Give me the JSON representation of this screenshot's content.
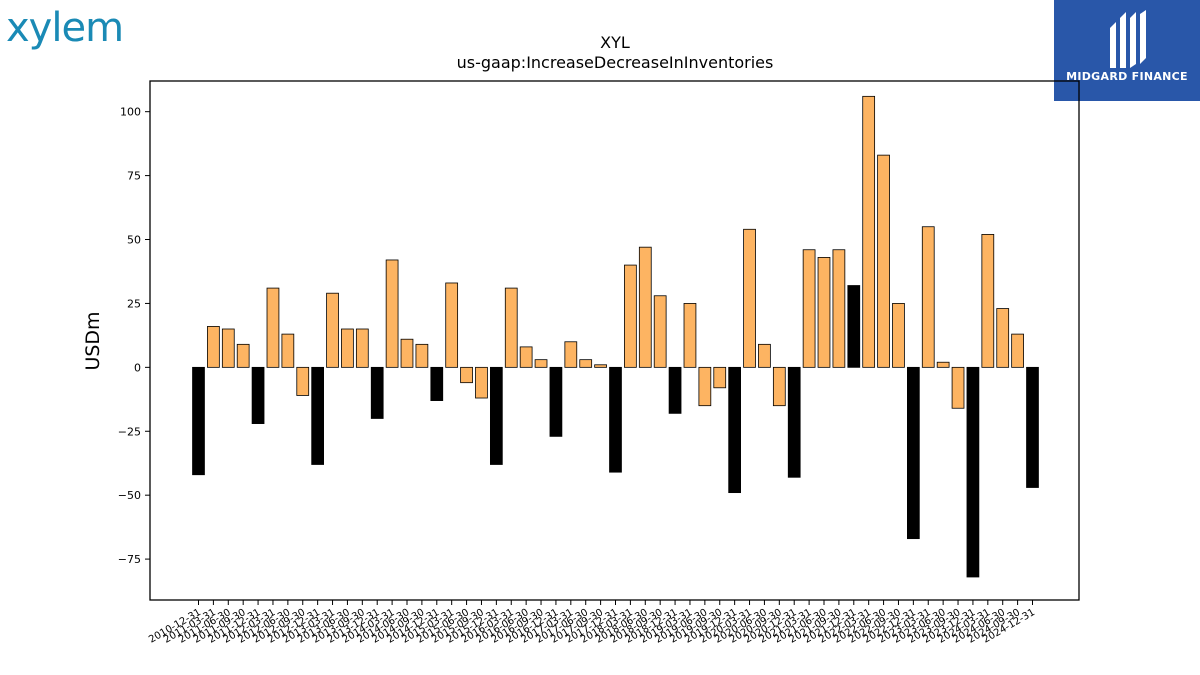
{
  "brand": {
    "company_logo_text": "xylem",
    "publisher_logo_text": "MIDGARD FINANCE",
    "company_logo_color": "#1a8ab5",
    "publisher_logo_bg": "#2957a9"
  },
  "chart_data": {
    "type": "bar",
    "title": "XYL",
    "subtitle": "us-gaap:IncreaseDecreaseInInventories",
    "ylabel": "USDm",
    "xlabel": "",
    "ylim": [
      -91,
      112
    ],
    "yticks": [
      100,
      75,
      50,
      25,
      0,
      -25,
      -50,
      -75
    ],
    "ytick_labels": [
      "100",
      "75",
      "50",
      "25",
      "0",
      "−25",
      "−50",
      "−75"
    ],
    "grid": false,
    "legend": "none",
    "colors": {
      "positive_quarter": "#fdb462",
      "fiscal_year_end": "#000000",
      "edge": "#000000"
    },
    "categories": [
      "2010-12-31",
      "2011-03-31",
      "2011-06-30",
      "2011-09-30",
      "2011-12-31",
      "2012-03-31",
      "2012-06-30",
      "2012-09-30",
      "2012-12-31",
      "2013-03-31",
      "2013-06-30",
      "2013-09-30",
      "2013-12-31",
      "2014-03-31",
      "2014-06-30",
      "2014-09-30",
      "2014-12-31",
      "2015-03-31",
      "2015-06-30",
      "2015-09-30",
      "2015-12-31",
      "2016-03-31",
      "2016-06-30",
      "2016-09-30",
      "2016-12-31",
      "2017-03-31",
      "2017-06-30",
      "2017-09-30",
      "2017-12-31",
      "2018-03-31",
      "2018-06-30",
      "2018-09-30",
      "2018-12-31",
      "2019-03-31",
      "2019-06-30",
      "2019-09-30",
      "2019-12-31",
      "2020-03-31",
      "2020-06-30",
      "2020-09-30",
      "2020-12-31",
      "2021-03-31",
      "2021-06-30",
      "2021-09-30",
      "2021-12-31",
      "2022-03-31",
      "2022-06-30",
      "2022-09-30",
      "2022-12-31",
      "2023-03-31",
      "2023-06-30",
      "2023-09-30",
      "2023-12-31",
      "2024-03-31",
      "2024-06-30",
      "2024-09-30",
      "2024-12-31"
    ],
    "values": [
      -42,
      16,
      15,
      9,
      -22,
      31,
      13,
      -11,
      -38,
      29,
      15,
      15,
      -20,
      42,
      11,
      9,
      -13,
      33,
      -6,
      -12,
      -38,
      31,
      8,
      3,
      -27,
      10,
      3,
      1,
      -41,
      40,
      47,
      28,
      -18,
      25,
      -15,
      -8,
      -49,
      54,
      9,
      -15,
      -43,
      46,
      43,
      46,
      32,
      106,
      83,
      25,
      -67,
      55,
      2,
      -16,
      -82,
      52,
      23,
      13,
      -47
    ],
    "dark_bars": [
      0,
      4,
      8,
      12,
      16,
      20,
      24,
      28,
      32,
      36,
      40,
      44,
      48,
      52,
      56
    ]
  }
}
